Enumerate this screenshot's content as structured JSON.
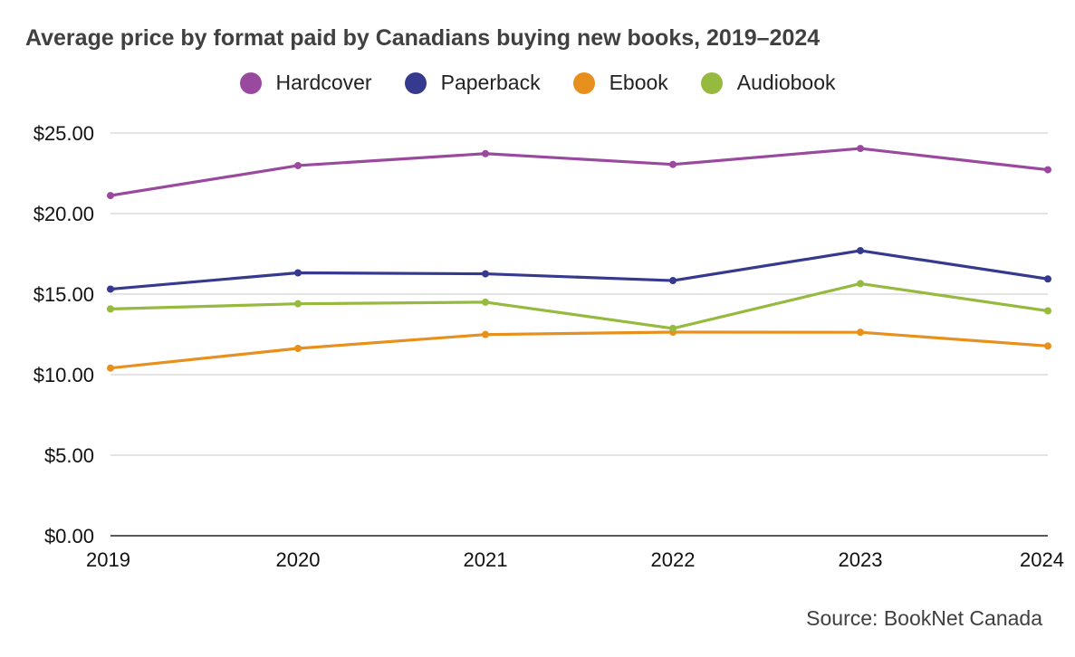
{
  "title": "Average price by format paid by Canadians buying new books, 2019–2024",
  "source": "Source: BookNet Canada",
  "chart_data": {
    "type": "line",
    "title": "Average price by format paid by Canadians buying new books, 2019–2024",
    "xlabel": "",
    "ylabel": "",
    "categories": [
      "2019",
      "2020",
      "2021",
      "2022",
      "2023",
      "2024"
    ],
    "ylim": [
      0,
      25
    ],
    "yticks": [
      0,
      5,
      10,
      15,
      20,
      25
    ],
    "ytick_labels": [
      "$0.00",
      "$5.00",
      "$10.00",
      "$15.00",
      "$20.00",
      "$25.00"
    ],
    "grid": true,
    "legend_position": "top",
    "series": [
      {
        "name": "Hardcover",
        "color": "#9a4a9e",
        "values": [
          21.12,
          22.98,
          23.72,
          23.05,
          24.04,
          22.72
        ]
      },
      {
        "name": "Paperback",
        "color": "#363a8e",
        "values": [
          15.31,
          16.32,
          16.26,
          15.84,
          17.7,
          15.94
        ]
      },
      {
        "name": "Ebook",
        "color": "#e8901e",
        "values": [
          10.41,
          11.63,
          12.49,
          12.64,
          12.63,
          11.78
        ]
      },
      {
        "name": "Audiobook",
        "color": "#96ba3f",
        "values": [
          14.08,
          14.4,
          14.5,
          12.87,
          15.65,
          13.96
        ]
      }
    ]
  }
}
